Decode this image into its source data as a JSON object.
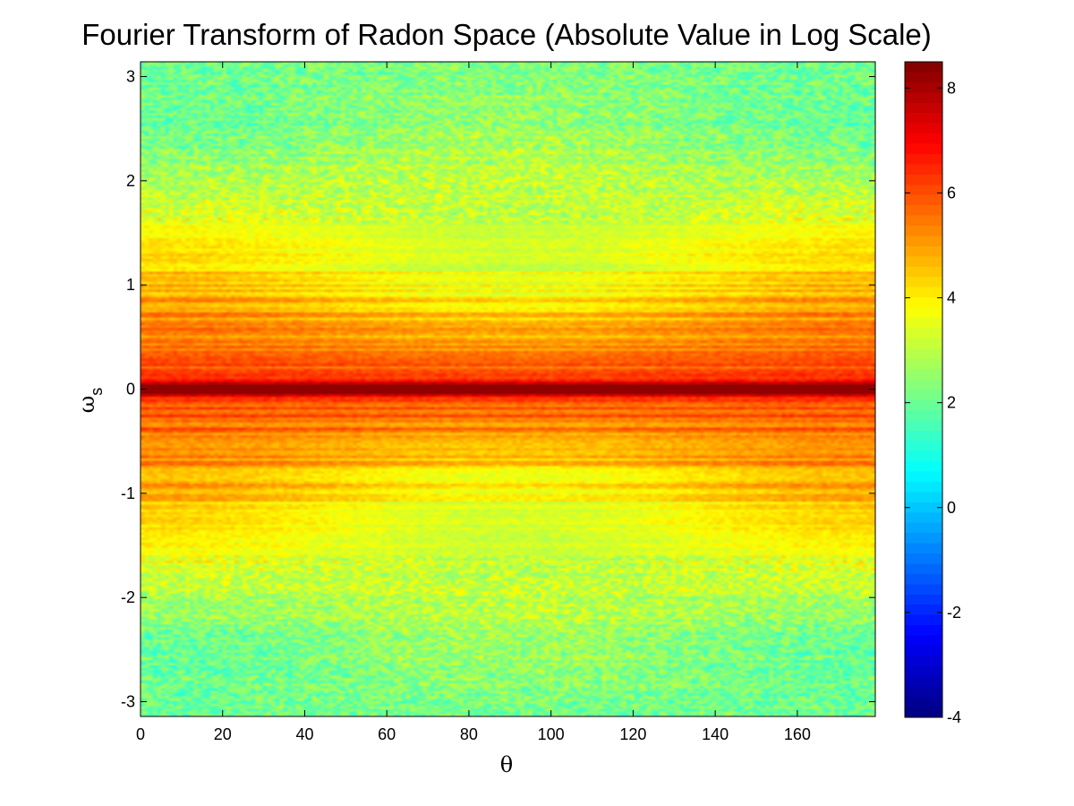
{
  "chart_data": {
    "type": "heatmap",
    "title": "Fourier Transform of Radon Space (Absolute Value in Log Scale)",
    "xlabel": "θ",
    "ylabel": "ω",
    "ylabel_subscript": "s",
    "xlim": [
      0,
      179
    ],
    "ylim": [
      -3.1416,
      3.1416
    ],
    "x_ticks": [
      0,
      20,
      40,
      60,
      80,
      100,
      120,
      140,
      160
    ],
    "x_tick_labels": [
      "0",
      "20",
      "40",
      "60",
      "80",
      "100",
      "120",
      "140",
      "160"
    ],
    "y_ticks": [
      -3,
      -2,
      -1,
      0,
      1,
      2,
      3
    ],
    "y_tick_labels": [
      "-3",
      "-2",
      "-1",
      "0",
      "1",
      "2",
      "3"
    ],
    "colorbar": {
      "colormap": "jet",
      "range": [
        -4,
        8.5
      ],
      "ticks": [
        -4,
        -2,
        0,
        2,
        4,
        6,
        8
      ],
      "tick_labels": [
        "-4",
        "-2",
        "0",
        "2",
        "4",
        "6",
        "8"
      ]
    },
    "approx_value_profile": {
      "description": "approximate mean value vs omega_s (symmetric about 0)",
      "omega": [
        0,
        0.1,
        0.3,
        0.6,
        1.0,
        1.5,
        2.0,
        2.5,
        3.14
      ],
      "value": [
        8.2,
        6.2,
        5.6,
        5.0,
        4.2,
        3.5,
        2.9,
        2.3,
        2.1
      ]
    },
    "grid": false
  }
}
